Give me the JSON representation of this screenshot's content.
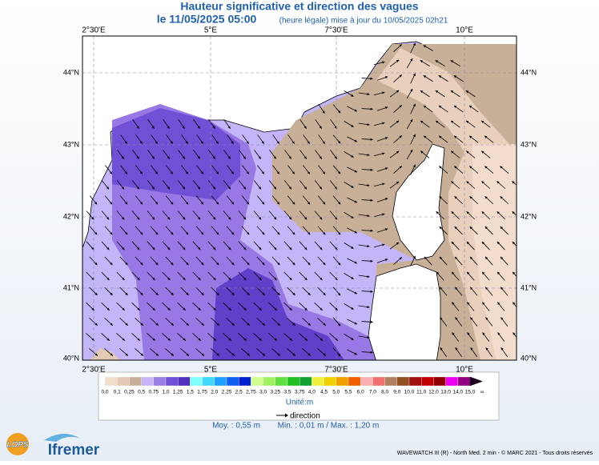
{
  "header": {
    "title": "Hauteur significative et direction des vagues",
    "forecast_time": "le 11/05/2025 05:00",
    "update_note": "(heure légale) mise à jour du 10/05/2025 02h21"
  },
  "map": {
    "lon_labels": [
      "2°30'E",
      "5°E",
      "7°30'E",
      "10°E"
    ],
    "lat_labels": [
      "44°N",
      "43°N",
      "42°N",
      "41°N",
      "40°N"
    ]
  },
  "legend": {
    "levels": [
      "0,0",
      "0,1",
      "0,25",
      "0,5",
      "0,75",
      "1,0",
      "1,25",
      "1,5",
      "1,75",
      "2,0",
      "2,25",
      "2,5",
      "2,75",
      "3,0",
      "3,25",
      "3,5",
      "3,75",
      "4,0",
      "4,5",
      "5,0",
      "5,5",
      "6,0",
      "7,0",
      "8,0",
      "9,0",
      "10,0",
      "11,0",
      "12,0",
      "13,0",
      "14,0",
      "15,0",
      "∞"
    ],
    "colors": [
      "#f2dccc",
      "#e2cab4",
      "#c8b098",
      "#c4b4f8",
      "#9880e4",
      "#7050d4",
      "#5030c0",
      "#80ffff",
      "#40d8ff",
      "#20a0ff",
      "#1060f0",
      "#0020d0",
      "#d0ff90",
      "#a0f060",
      "#60e040",
      "#20c020",
      "#10a030",
      "#f0f040",
      "#f0d000",
      "#f0a000",
      "#f06000",
      "#f8b0b0",
      "#f07070",
      "#b08060",
      "#905020",
      "#a01010",
      "#c00000",
      "#900000",
      "#f000f0",
      "#900080",
      "#200020"
    ],
    "unit": "Unité:m",
    "direction_label": "direction",
    "mean": "Moy. : 0,55 m",
    "minmax": "Min. : 0,01 m / Max. : 1,20 m"
  },
  "footer": {
    "lops": "LOPS",
    "ifremer": "Ifremer",
    "credits": "WAVEWATCH III (R) - North Med. 2 min - © MARC 2021 - Tous droits réservés"
  }
}
